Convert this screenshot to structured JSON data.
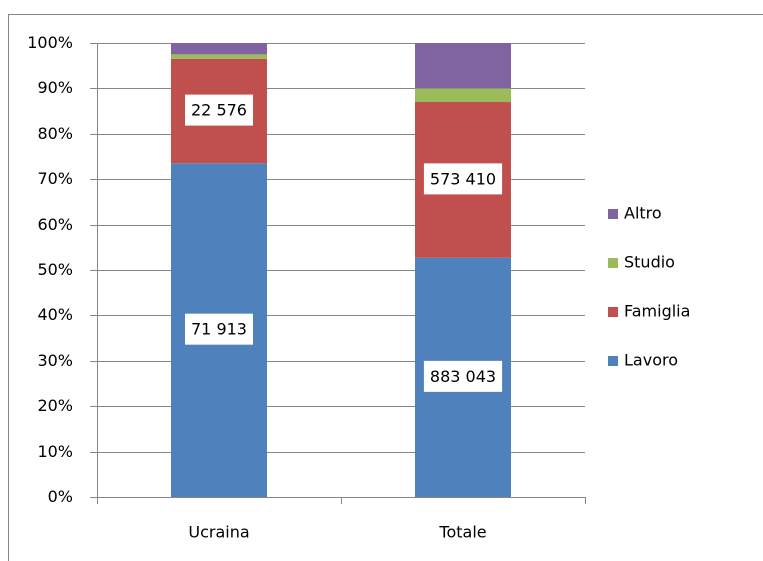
{
  "chart_data": {
    "type": "stacked_bar_100",
    "categories": [
      "Ucraina",
      "Totale"
    ],
    "series": [
      {
        "name": "Lavoro",
        "color": "#4f81bd",
        "values": [
          73.5,
          52.7
        ],
        "labels": [
          "71 913",
          "883 043"
        ]
      },
      {
        "name": "Famiglia",
        "color": "#c0504d",
        "values": [
          23,
          34.3
        ],
        "labels": [
          "22 576",
          "573 410"
        ]
      },
      {
        "name": "Studio",
        "color": "#9bbb59",
        "values": [
          1,
          3
        ]
      },
      {
        "name": "Altro",
        "color": "#8064a2",
        "values": [
          2.5,
          10
        ]
      }
    ],
    "ylim": [
      0,
      100
    ],
    "yticks": [
      {
        "value": 0,
        "label": "0%"
      },
      {
        "value": 10,
        "label": "10%"
      },
      {
        "value": 20,
        "label": "20%"
      },
      {
        "value": 30,
        "label": "30%"
      },
      {
        "value": 40,
        "label": "40%"
      },
      {
        "value": 50,
        "label": "50%"
      },
      {
        "value": 60,
        "label": "60%"
      },
      {
        "value": 70,
        "label": "70%"
      },
      {
        "value": 80,
        "label": "80%"
      },
      {
        "value": 90,
        "label": "90%"
      },
      {
        "value": 100,
        "label": "100%"
      }
    ],
    "grid": true,
    "legend": "right"
  }
}
